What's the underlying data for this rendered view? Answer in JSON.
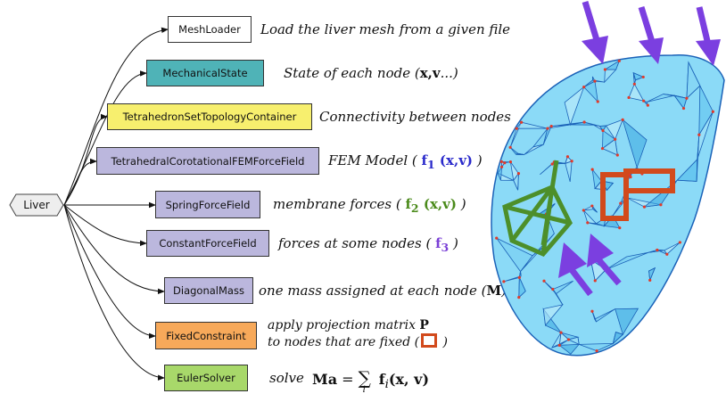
{
  "root": {
    "label": "Liver"
  },
  "components": [
    {
      "id": "meshloader",
      "label": "MeshLoader",
      "color": "#ffffff",
      "desc": {
        "text": "Load the liver mesh from a given file"
      }
    },
    {
      "id": "mechanicalstate",
      "label": "MechanicalState",
      "color": "#4fb3b7",
      "desc": {
        "pre": "State of each node (",
        "math": "x,v",
        "post": "...)"
      }
    },
    {
      "id": "topology",
      "label": "TetrahedronSetTopologyContainer",
      "color": "#f7ef6e",
      "desc": {
        "text": "Connectivity between nodes"
      }
    },
    {
      "id": "fem",
      "label": "TetrahedralCorotationalFEMForceField",
      "color": "#bbb7dd",
      "desc": {
        "pre": "FEM Model ( ",
        "math": "f",
        "sub": "1",
        "args": " (x,v)",
        "post": " )"
      }
    },
    {
      "id": "spring",
      "label": "SpringForceField",
      "color": "#bbb7dd",
      "desc": {
        "pre": "membrane forces ( ",
        "math": "f",
        "sub": "2",
        "args": " (x,v)",
        "post": " )"
      }
    },
    {
      "id": "constant",
      "label": "ConstantForceField",
      "color": "#bbb7dd",
      "desc": {
        "pre": "forces at some nodes ( ",
        "math": "f",
        "sub": "3",
        "post": " )"
      }
    },
    {
      "id": "mass",
      "label": "DiagonalMass",
      "color": "#bbb7dd",
      "desc": {
        "pre": "one mass assigned at each node (",
        "math": "M",
        "post": ")"
      }
    },
    {
      "id": "fixed",
      "label": "FixedConstraint",
      "color": "#f7a95a",
      "desc": {
        "line1_pre": "apply projection matrix ",
        "line1_math": "P",
        "line2_pre": "to nodes that are fixed (",
        "line2_post": " )"
      }
    },
    {
      "id": "euler",
      "label": "EulerSolver",
      "color": "#a8d86a",
      "desc": {
        "pre": "solve",
        "eq_lhs": "Ma",
        "eq_op": "=",
        "eq_sum": "∑",
        "eq_idx": "i",
        "eq_rhs": "f",
        "eq_rhs_sub": "i",
        "eq_args": "(x, v)"
      }
    }
  ],
  "colors": {
    "fem_text": "#2a2acb",
    "spring_text": "#4a8a1a",
    "constant_text": "#7a3fd6",
    "fixed_marker": "#d24a1c",
    "mesh_fill": "#7ed3f4",
    "mesh_edge": "#1b62b8",
    "arrow": "#7b3fe0",
    "spring_lines": "#4d8f2a"
  }
}
